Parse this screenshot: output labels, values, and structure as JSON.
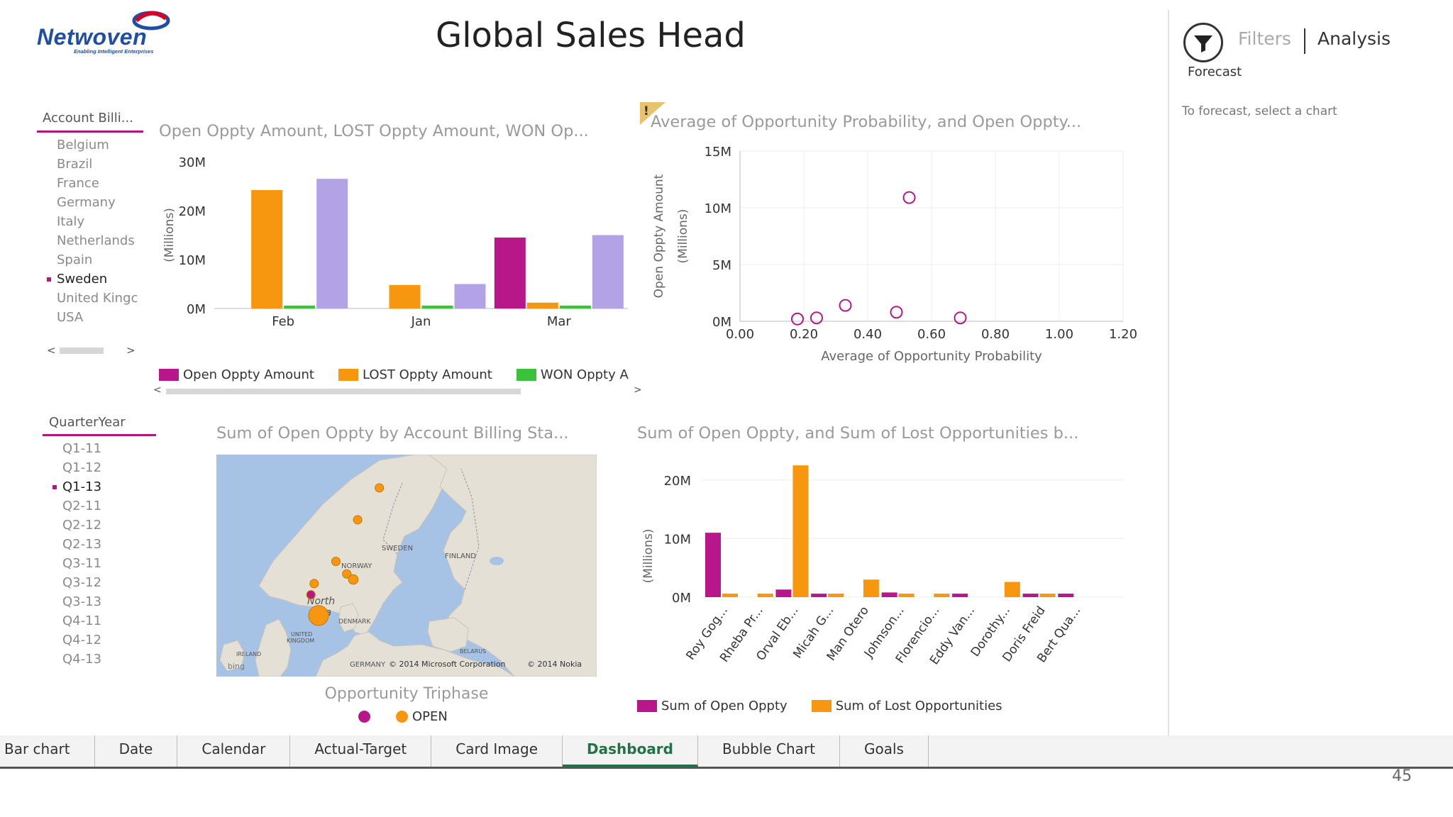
{
  "logo": {
    "word": "Netwoven",
    "tagline": "Enabling Intelligent Enterprises"
  },
  "page_title": "Global Sales Head",
  "slicer_account": {
    "title": "Account Billi...",
    "items": [
      {
        "label": "Belgium",
        "selected": false
      },
      {
        "label": "Brazil",
        "selected": false
      },
      {
        "label": "France",
        "selected": false
      },
      {
        "label": "Germany",
        "selected": false
      },
      {
        "label": "Italy",
        "selected": false
      },
      {
        "label": "Netherlands",
        "selected": false
      },
      {
        "label": "Spain",
        "selected": false
      },
      {
        "label": "Sweden",
        "selected": true
      },
      {
        "label": "United Kingc",
        "selected": false
      },
      {
        "label": "USA",
        "selected": false
      }
    ],
    "scroll_left": "<",
    "scroll_right": ">"
  },
  "slicer_quarter": {
    "title": "QuarterYear",
    "items": [
      {
        "label": "Q1-11",
        "selected": false
      },
      {
        "label": "Q1-12",
        "selected": false
      },
      {
        "label": "Q1-13",
        "selected": true
      },
      {
        "label": "Q2-11",
        "selected": false
      },
      {
        "label": "Q2-12",
        "selected": false
      },
      {
        "label": "Q2-13",
        "selected": false
      },
      {
        "label": "Q3-11",
        "selected": false
      },
      {
        "label": "Q3-12",
        "selected": false
      },
      {
        "label": "Q3-13",
        "selected": false
      },
      {
        "label": "Q4-11",
        "selected": false
      },
      {
        "label": "Q4-12",
        "selected": false
      },
      {
        "label": "Q4-13",
        "selected": false
      }
    ]
  },
  "colors": {
    "open": "#b8178a",
    "lost": "#f7970f",
    "won": "#3ac23a",
    "lavender": "#b4a2e6",
    "axis": "#bbbbbb",
    "grid": "#ececec"
  },
  "chart_data": [
    {
      "type": "bar",
      "title": "Open Oppty Amount, LOST Oppty Amount, WON Op...",
      "ylabel": "(Millions)",
      "categories": [
        "Feb",
        "Jan",
        "Mar"
      ],
      "ylim": [
        0,
        30
      ],
      "yticks": [
        {
          "v": 0,
          "label": "0M"
        },
        {
          "v": 10,
          "label": "10M"
        },
        {
          "v": 20,
          "label": "20M"
        },
        {
          "v": 30,
          "label": "30M"
        }
      ],
      "series": [
        {
          "name": "Open Oppty Amount",
          "color": "#b8178a",
          "values": [
            0,
            0,
            14.5
          ]
        },
        {
          "name": "LOST Oppty Amount",
          "color": "#f7970f",
          "values": [
            24.2,
            4.8,
            1.2
          ]
        },
        {
          "name": "WON Oppty A",
          "color": "#3ac23a",
          "values": [
            0.6,
            0.6,
            0.6
          ]
        },
        {
          "color": "#b4a2e6",
          "values": [
            26.5,
            5.0,
            15.0
          ]
        }
      ],
      "legend_position": "bottom",
      "scroll_left": "<",
      "scroll_right": ">"
    },
    {
      "type": "scatter",
      "title": "Average of Opportunity Probability, and Open Oppty...",
      "warning_glyph": "!",
      "xlabel": "Average of Opportunity Probability",
      "ylabel": "Open Oppty Amount",
      "ylabel_unit": "(Millions)",
      "xlim": [
        0,
        1.2
      ],
      "ylim": [
        0,
        15
      ],
      "xticks": [
        {
          "v": 0,
          "label": "0.00"
        },
        {
          "v": 0.2,
          "label": "0.20"
        },
        {
          "v": 0.4,
          "label": "0.40"
        },
        {
          "v": 0.6,
          "label": "0.60"
        },
        {
          "v": 0.8,
          "label": "0.80"
        },
        {
          "v": 1.0,
          "label": "1.00"
        },
        {
          "v": 1.2,
          "label": "1.20"
        }
      ],
      "yticks": [
        {
          "v": 0,
          "label": "0M"
        },
        {
          "v": 5,
          "label": "5M"
        },
        {
          "v": 10,
          "label": "10M"
        },
        {
          "v": 15,
          "label": "15M"
        }
      ],
      "points": [
        {
          "x": 0.18,
          "y": 0.2
        },
        {
          "x": 0.24,
          "y": 0.3
        },
        {
          "x": 0.33,
          "y": 1.4
        },
        {
          "x": 0.49,
          "y": 0.8
        },
        {
          "x": 0.53,
          "y": 10.9
        },
        {
          "x": 0.69,
          "y": 0.3
        }
      ],
      "grid": true
    },
    {
      "type": "map",
      "title": "Sum of Open Oppty by Account Billing Sta...",
      "legend_title": "Opportunity Triphase",
      "legend": [
        {
          "name": "",
          "color": "#b8178a"
        },
        {
          "name": "OPEN",
          "color": "#f7970f"
        }
      ],
      "labels": {
        "sweden": "SWEDEN",
        "finland": "FINLAND",
        "norway": "NORWAY",
        "north_sea_1": "North",
        "north_sea_2": "Sea",
        "denmark": "DENMARK",
        "uk_1": "UNITED",
        "uk_2": "KINGDOM",
        "ireland": "IRELAND",
        "belarus": "BELARUS",
        "germany": "GERMANY",
        "copyright": "© 2014 Microsoft Corporation",
        "copyright2": "© 2014 Nokia",
        "bing": "bing"
      },
      "bubbles": [
        {
          "lon": 18.0,
          "lat": 64.6,
          "size": 1,
          "color": "#f7970f"
        },
        {
          "lon": 16.0,
          "lat": 62.3,
          "size": 1,
          "color": "#f7970f"
        },
        {
          "lon": 14.0,
          "lat": 59.3,
          "size": 1,
          "color": "#f7970f"
        },
        {
          "lon": 15.0,
          "lat": 58.4,
          "size": 1,
          "color": "#f7970f"
        },
        {
          "lon": 15.6,
          "lat": 58.0,
          "size": 1.3,
          "color": "#f7970f"
        },
        {
          "lon": 12.0,
          "lat": 57.7,
          "size": 1,
          "color": "#f7970f"
        },
        {
          "lon": 11.7,
          "lat": 56.9,
          "size": 1,
          "color": "#b8178a"
        },
        {
          "lon": 12.4,
          "lat": 55.4,
          "size": 3,
          "color": "#f7970f"
        }
      ]
    },
    {
      "type": "bar",
      "title": "Sum of Open Oppty, and Sum of Lost Opportunities b...",
      "ylabel": "(Millions)",
      "ylim": [
        0,
        20
      ],
      "yticks": [
        {
          "v": 0,
          "label": "0M"
        },
        {
          "v": 10,
          "label": "10M"
        },
        {
          "v": 20,
          "label": "20M"
        }
      ],
      "categories": [
        "Roy Gog...",
        "Rheba Pr...",
        "Orval Eb...",
        "Micah G...",
        "Man Otero",
        "Johnson...",
        "Florencio...",
        "Eddy Van...",
        "Dorothy...",
        "Doris Freid",
        "Bert Qua..."
      ],
      "series": [
        {
          "name": "Sum of Open Oppty",
          "color": "#b8178a",
          "values": [
            11.0,
            0.0,
            1.3,
            0.6,
            0.0,
            0.8,
            0.0,
            0.6,
            0.0,
            0.6,
            0.6
          ]
        },
        {
          "name": "Sum of Lost Opportunities",
          "color": "#f7970f",
          "values": [
            0.6,
            0.6,
            22.5,
            0.6,
            3.0,
            0.6,
            0.6,
            0.0,
            2.6,
            0.6,
            0.0
          ]
        }
      ],
      "legend_position": "bottom"
    }
  ],
  "tabs": [
    {
      "label": "Bar chart",
      "active": false
    },
    {
      "label": "Date",
      "active": false
    },
    {
      "label": "Calendar",
      "active": false
    },
    {
      "label": "Actual-Target",
      "active": false
    },
    {
      "label": "Card Image",
      "active": false
    },
    {
      "label": "Dashboard",
      "active": true
    },
    {
      "label": "Bubble Chart",
      "active": false
    },
    {
      "label": "Goals",
      "active": false
    }
  ],
  "side_pane": {
    "filters_label": "Filters",
    "analysis_label": "Analysis",
    "forecast_label": "Forecast",
    "forecast_hint": "To forecast, select a chart"
  },
  "page_number": "45"
}
